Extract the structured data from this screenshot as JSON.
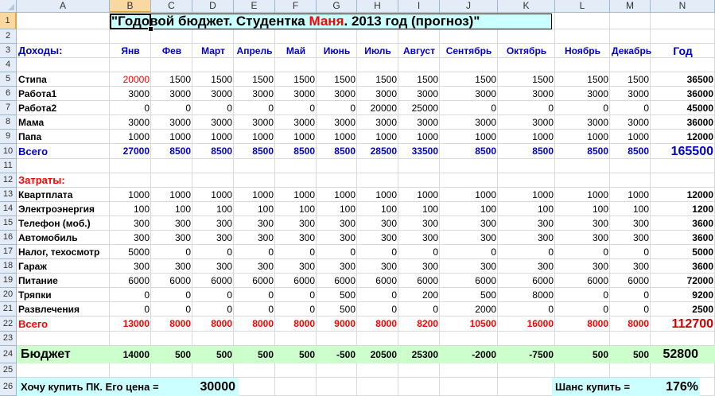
{
  "columns": [
    "A",
    "B",
    "C",
    "D",
    "E",
    "F",
    "G",
    "H",
    "I",
    "J",
    "K",
    "L",
    "M",
    "N"
  ],
  "selected_column": "B",
  "selected_row": "1",
  "rows": [
    "1",
    "2",
    "3",
    "4",
    "5",
    "6",
    "7",
    "8",
    "9",
    "10",
    "11",
    "12",
    "13",
    "14",
    "15",
    "16",
    "17",
    "18",
    "19",
    "20",
    "21",
    "22",
    "23",
    "24",
    "25",
    "26"
  ],
  "title": {
    "part1": "\"Годовой бюджет. Студентка ",
    "name": "Маня",
    "part2": ". 2013 год (прогноз)\""
  },
  "income_header": "Доходы:",
  "months": [
    "Янв",
    "Фев",
    "Март",
    "Апрель",
    "Май",
    "Июнь",
    "Июль",
    "Август",
    "Сентябрь",
    "Октябрь",
    "Ноябрь",
    "Декабрь"
  ],
  "year_header": "Год",
  "income_rows": [
    {
      "label": "Стипа",
      "values": [
        "20000",
        "1500",
        "1500",
        "1500",
        "1500",
        "1500",
        "1500",
        "1500",
        "1500",
        "1500",
        "1500",
        "1500"
      ],
      "total": "36500"
    },
    {
      "label": "Работа1",
      "values": [
        "3000",
        "3000",
        "3000",
        "3000",
        "3000",
        "3000",
        "3000",
        "3000",
        "3000",
        "3000",
        "3000",
        "3000"
      ],
      "total": "36000"
    },
    {
      "label": "Работа2",
      "values": [
        "0",
        "0",
        "0",
        "0",
        "0",
        "0",
        "20000",
        "25000",
        "0",
        "0",
        "0",
        "0"
      ],
      "total": "45000"
    },
    {
      "label": "Мама",
      "values": [
        "3000",
        "3000",
        "3000",
        "3000",
        "3000",
        "3000",
        "3000",
        "3000",
        "3000",
        "3000",
        "3000",
        "3000"
      ],
      "total": "36000"
    },
    {
      "label": "Папа",
      "values": [
        "1000",
        "1000",
        "1000",
        "1000",
        "1000",
        "1000",
        "1000",
        "1000",
        "1000",
        "1000",
        "1000",
        "1000"
      ],
      "total": "12000"
    }
  ],
  "income_total": {
    "label": "Всего",
    "values": [
      "27000",
      "8500",
      "8500",
      "8500",
      "8500",
      "8500",
      "28500",
      "33500",
      "8500",
      "8500",
      "8500",
      "8500"
    ],
    "total": "165500"
  },
  "expense_header": "Затраты:",
  "expense_rows": [
    {
      "label": "Квартплата",
      "values": [
        "1000",
        "1000",
        "1000",
        "1000",
        "1000",
        "1000",
        "1000",
        "1000",
        "1000",
        "1000",
        "1000",
        "1000"
      ],
      "total": "12000"
    },
    {
      "label": "Электроэнергия",
      "values": [
        "100",
        "100",
        "100",
        "100",
        "100",
        "100",
        "100",
        "100",
        "100",
        "100",
        "100",
        "100"
      ],
      "total": "1200"
    },
    {
      "label": "Телефон (моб.)",
      "values": [
        "300",
        "300",
        "300",
        "300",
        "300",
        "300",
        "300",
        "300",
        "300",
        "300",
        "300",
        "300"
      ],
      "total": "3600"
    },
    {
      "label": "Автомобиль",
      "values": [
        "300",
        "300",
        "300",
        "300",
        "300",
        "300",
        "300",
        "300",
        "300",
        "300",
        "300",
        "300"
      ],
      "total": "3600"
    },
    {
      "label": "Налог, техосмотр",
      "values": [
        "5000",
        "0",
        "0",
        "0",
        "0",
        "0",
        "0",
        "0",
        "0",
        "0",
        "0",
        "0"
      ],
      "total": "5000"
    },
    {
      "label": "Гараж",
      "values": [
        "300",
        "300",
        "300",
        "300",
        "300",
        "300",
        "300",
        "300",
        "300",
        "300",
        "300",
        "300"
      ],
      "total": "3600"
    },
    {
      "label": "Питание",
      "values": [
        "6000",
        "6000",
        "6000",
        "6000",
        "6000",
        "6000",
        "6000",
        "6000",
        "6000",
        "6000",
        "6000",
        "6000"
      ],
      "total": "72000"
    },
    {
      "label": "Тряпки",
      "values": [
        "0",
        "0",
        "0",
        "0",
        "0",
        "500",
        "0",
        "200",
        "500",
        "8000",
        "0",
        "0"
      ],
      "total": "9200"
    },
    {
      "label": "Развлечения",
      "values": [
        "0",
        "0",
        "0",
        "0",
        "0",
        "500",
        "0",
        "0",
        "2000",
        "0",
        "0",
        "0"
      ],
      "total": "2500"
    }
  ],
  "expense_total": {
    "label": "Всего",
    "values": [
      "13000",
      "8000",
      "8000",
      "8000",
      "8000",
      "9000",
      "8000",
      "8200",
      "10500",
      "16000",
      "8000",
      "8000"
    ],
    "total": "112700"
  },
  "budget": {
    "label": "Бюджет",
    "values": [
      "14000",
      "500",
      "500",
      "500",
      "500",
      "-500",
      "20500",
      "25300",
      "-2000",
      "-7500",
      "500",
      "500"
    ],
    "total": "52800"
  },
  "pc": {
    "label": "Хочу купить ПК. Его цена =",
    "price": "30000",
    "chance_label": "Шанс купить =",
    "chance": "176%"
  }
}
